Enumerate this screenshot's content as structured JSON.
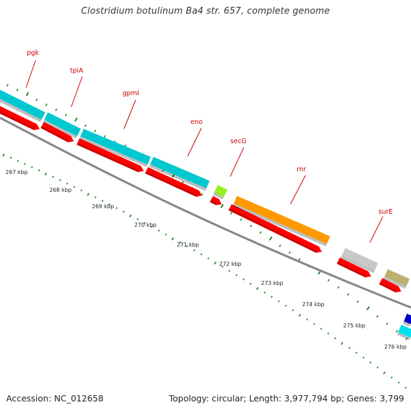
{
  "title": "Clostridium botulinum Ba4 str. 657, complete genome",
  "footer": {
    "accession": "Accession: NC_012658",
    "summary": "Topology: circular; Length: 3,977,794 bp; Genes: 3,799"
  },
  "genes": [
    {
      "label": "pgk",
      "color": "#00c8d0"
    },
    {
      "label": "tpiA",
      "color": "#00c8d0"
    },
    {
      "label": "gpmI",
      "color": "#00c8d0"
    },
    {
      "label": "eno",
      "color": "#00c8d0"
    },
    {
      "label": "secG",
      "color": "#99ee22"
    },
    {
      "label": "rnr",
      "color": "#ff9900"
    },
    {
      "label": "surE",
      "color": "#c8c8c8"
    },
    {
      "label": "",
      "color": "#bbb070"
    },
    {
      "label": "",
      "color": "#0000cc"
    },
    {
      "label": "",
      "color": "#00e0f0"
    }
  ],
  "ticks": [
    "267 kbp",
    "268 kbp",
    "269 kbp",
    "270 kbp",
    "271 kbp",
    "272 kbp",
    "273 kbp",
    "274 kbp",
    "275 kbp",
    "276 kbp"
  ],
  "colors": {
    "cds_arrow": "#ff0000",
    "backbone": "#888888",
    "tick": "#228822",
    "label": "#cc0000"
  }
}
